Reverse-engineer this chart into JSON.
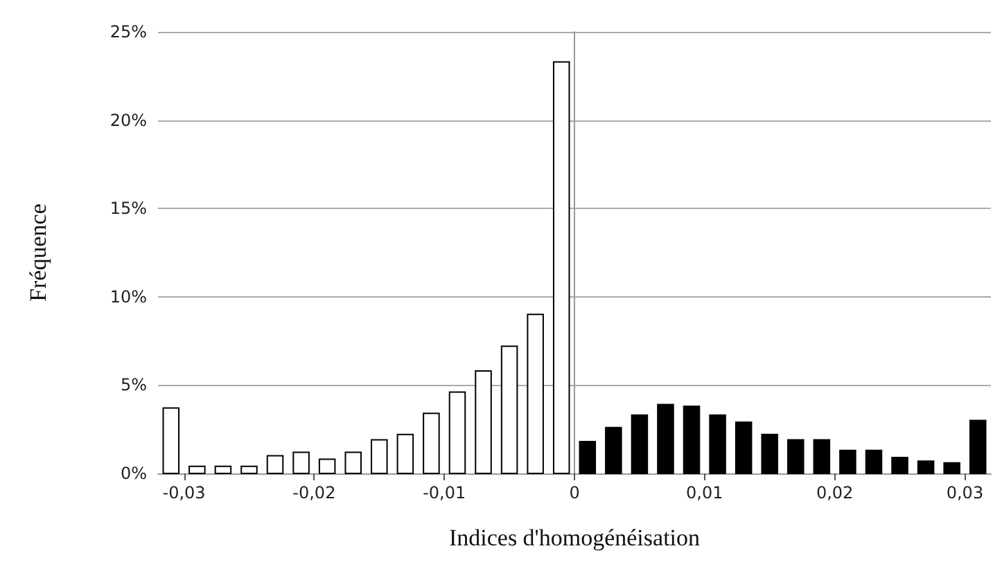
{
  "chart_data": {
    "type": "histogram",
    "xlabel": "Indices d'homogénéisation",
    "ylabel": "Fréquence",
    "bins": [
      -0.032,
      -0.03,
      -0.028,
      -0.026,
      -0.024,
      -0.022,
      -0.02,
      -0.018,
      -0.016,
      -0.014,
      -0.012,
      -0.01,
      -0.008,
      -0.006,
      -0.004,
      -0.002,
      0,
      0.002,
      0.004,
      0.006,
      0.008,
      0.01,
      0.012,
      0.014,
      0.016,
      0.018,
      0.02,
      0.022,
      0.024,
      0.026,
      0.028,
      0.03,
      0.032
    ],
    "values": [
      3.7,
      0.4,
      0.4,
      0.4,
      1.0,
      1.2,
      0.8,
      1.2,
      1.9,
      2.2,
      3.4,
      4.6,
      5.8,
      7.2,
      9.0,
      23.3,
      1.8,
      2.6,
      3.3,
      3.9,
      3.8,
      3.3,
      2.9,
      2.2,
      1.9,
      1.9,
      1.3,
      1.3,
      0.9,
      0.7,
      0.6,
      3.0
    ],
    "colors": [
      "#ffffff",
      "#ffffff",
      "#ffffff",
      "#ffffff",
      "#ffffff",
      "#ffffff",
      "#ffffff",
      "#ffffff",
      "#ffffff",
      "#ffffff",
      "#ffffff",
      "#ffffff",
      "#ffffff",
      "#ffffff",
      "#ffffff",
      "#ffffff",
      "#000000",
      "#000000",
      "#000000",
      "#000000",
      "#000000",
      "#000000",
      "#000000",
      "#000000",
      "#000000",
      "#000000",
      "#000000",
      "#000000",
      "#000000",
      "#000000",
      "#000000",
      "#000000"
    ],
    "xlim": [
      -0.032,
      0.032
    ],
    "xticks": [
      {
        "value": -0.03,
        "label": "-0,03"
      },
      {
        "value": -0.02,
        "label": "-0,02"
      },
      {
        "value": -0.01,
        "label": "-0,01"
      },
      {
        "value": 0,
        "label": "0"
      },
      {
        "value": 0.01,
        "label": "0,01"
      },
      {
        "value": 0.02,
        "label": "0,02"
      },
      {
        "value": 0.03,
        "label": "0,03"
      }
    ],
    "ylim": [
      0,
      25
    ],
    "yticks": [
      {
        "value": 0,
        "label": "0%"
      },
      {
        "value": 5,
        "label": "5%"
      },
      {
        "value": 10,
        "label": "10%"
      },
      {
        "value": 15,
        "label": "15%"
      },
      {
        "value": 20,
        "label": "20%"
      },
      {
        "value": 25,
        "label": "25%"
      }
    ],
    "grid": "y"
  }
}
